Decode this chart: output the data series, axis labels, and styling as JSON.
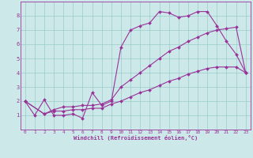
{
  "xlabel": "Windchill (Refroidissement éolien,°C)",
  "xlim": [
    -0.5,
    23.5
  ],
  "ylim": [
    0,
    9
  ],
  "xticks": [
    0,
    1,
    2,
    3,
    4,
    5,
    6,
    7,
    8,
    9,
    10,
    11,
    12,
    13,
    14,
    15,
    16,
    17,
    18,
    19,
    20,
    21,
    22,
    23
  ],
  "yticks": [
    1,
    2,
    3,
    4,
    5,
    6,
    7,
    8
  ],
  "bg_color": "#cce8e8",
  "line_color": "#993399",
  "grid_color": "#99cccc",
  "line1_x": [
    0,
    1,
    2,
    3,
    4,
    5,
    6,
    7,
    8,
    9,
    10,
    11,
    12,
    13,
    14,
    15,
    16,
    17,
    18,
    19,
    20,
    21,
    22,
    23
  ],
  "line1_y": [
    2.0,
    1.0,
    2.1,
    1.0,
    1.0,
    1.1,
    0.8,
    2.6,
    1.7,
    2.0,
    5.8,
    7.0,
    7.3,
    7.5,
    8.3,
    8.2,
    7.9,
    8.0,
    8.3,
    8.3,
    7.3,
    6.2,
    5.3,
    4.0
  ],
  "line2_x": [
    0,
    2,
    3,
    4,
    5,
    6,
    7,
    8,
    9,
    10,
    11,
    12,
    13,
    14,
    15,
    16,
    17,
    18,
    19,
    20,
    21,
    22,
    23
  ],
  "line2_y": [
    2.0,
    1.1,
    1.4,
    1.6,
    1.6,
    1.7,
    1.7,
    1.8,
    2.1,
    3.0,
    3.5,
    4.0,
    4.5,
    5.0,
    5.5,
    5.8,
    6.2,
    6.5,
    6.8,
    7.0,
    7.1,
    7.2,
    4.0
  ],
  "line3_x": [
    0,
    2,
    3,
    4,
    5,
    6,
    7,
    8,
    9,
    10,
    11,
    12,
    13,
    14,
    15,
    16,
    17,
    18,
    19,
    20,
    21,
    22,
    23
  ],
  "line3_y": [
    2.0,
    1.1,
    1.3,
    1.3,
    1.4,
    1.4,
    1.5,
    1.5,
    1.8,
    2.0,
    2.3,
    2.6,
    2.8,
    3.1,
    3.4,
    3.6,
    3.9,
    4.1,
    4.3,
    4.4,
    4.4,
    4.4,
    4.0
  ]
}
